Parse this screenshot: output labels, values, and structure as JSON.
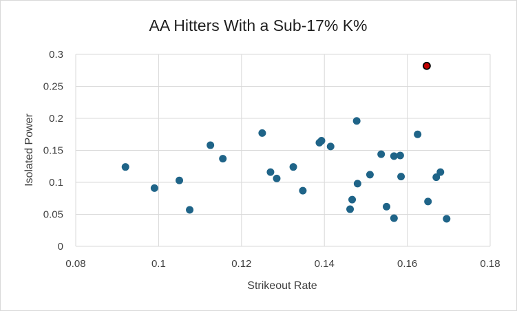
{
  "chart_data": {
    "type": "scatter",
    "title": "AA Hitters With a Sub-17% K%",
    "xlabel": "Strikeout Rate",
    "ylabel": "Isolated Power",
    "xlim": [
      0.08,
      0.18
    ],
    "ylim": [
      0,
      0.3
    ],
    "x_ticks": [
      "0.08",
      "0.1",
      "0.12",
      "0.14",
      "0.16",
      "0.18"
    ],
    "y_ticks": [
      "0",
      "0.05",
      "0.1",
      "0.15",
      "0.2",
      "0.25",
      "0.3"
    ],
    "grid": true,
    "legend": "none",
    "colors": {
      "point": "#1f6488",
      "highlight": "#c00000",
      "highlight_stroke": "#000000",
      "grid": "#d9d9d9"
    },
    "series": [
      {
        "points": [
          {
            "x": 0.092,
            "y": 0.124
          },
          {
            "x": 0.099,
            "y": 0.091
          },
          {
            "x": 0.105,
            "y": 0.103
          },
          {
            "x": 0.1075,
            "y": 0.057
          },
          {
            "x": 0.1125,
            "y": 0.158
          },
          {
            "x": 0.1155,
            "y": 0.137
          },
          {
            "x": 0.125,
            "y": 0.177
          },
          {
            "x": 0.127,
            "y": 0.116
          },
          {
            "x": 0.1285,
            "y": 0.106
          },
          {
            "x": 0.1325,
            "y": 0.124
          },
          {
            "x": 0.1348,
            "y": 0.087
          },
          {
            "x": 0.1388,
            "y": 0.162
          },
          {
            "x": 0.1393,
            "y": 0.165
          },
          {
            "x": 0.1415,
            "y": 0.156
          },
          {
            "x": 0.1462,
            "y": 0.058
          },
          {
            "x": 0.1467,
            "y": 0.073
          },
          {
            "x": 0.1478,
            "y": 0.196
          },
          {
            "x": 0.148,
            "y": 0.098
          },
          {
            "x": 0.151,
            "y": 0.112
          },
          {
            "x": 0.1537,
            "y": 0.144
          },
          {
            "x": 0.155,
            "y": 0.062
          },
          {
            "x": 0.1568,
            "y": 0.141
          },
          {
            "x": 0.1568,
            "y": 0.044
          },
          {
            "x": 0.1583,
            "y": 0.142
          },
          {
            "x": 0.1585,
            "y": 0.109
          },
          {
            "x": 0.1625,
            "y": 0.175
          },
          {
            "x": 0.165,
            "y": 0.07
          },
          {
            "x": 0.167,
            "y": 0.108
          },
          {
            "x": 0.168,
            "y": 0.116
          },
          {
            "x": 0.1695,
            "y": 0.043
          }
        ]
      },
      {
        "highlight": true,
        "points": [
          {
            "x": 0.1647,
            "y": 0.282
          }
        ]
      }
    ]
  }
}
